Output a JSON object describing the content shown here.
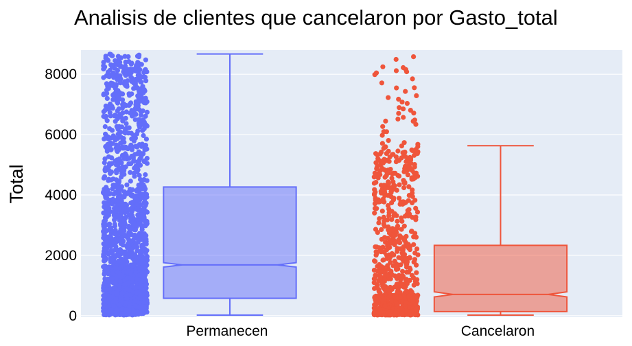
{
  "chart_data": {
    "type": "box",
    "title": "Analisis de clientes que cancelaron por Gasto_total",
    "xlabel": "",
    "ylabel": "Total",
    "ylim": [
      -50,
      8800
    ],
    "yticks": [
      0,
      2000,
      4000,
      6000,
      8000
    ],
    "grid": true,
    "legend": "none",
    "notched": true,
    "boxpoints": "all",
    "categories": [
      "Permanecen",
      "Cancelaron"
    ],
    "series": [
      {
        "category": "Permanecen",
        "color": "#636efa",
        "min": 19,
        "q1": 577,
        "median": 1683,
        "q3": 4264,
        "max": 8672,
        "notch_low": 1610,
        "notch_high": 1755
      },
      {
        "category": "Cancelaron",
        "color": "#ef553b",
        "min": 19,
        "q1": 134,
        "median": 704,
        "q3": 2331,
        "max": 5631,
        "notch_low": 620,
        "notch_high": 790
      }
    ],
    "plot_bg": "#e5ecf6",
    "grid_color": "#ffffff"
  }
}
